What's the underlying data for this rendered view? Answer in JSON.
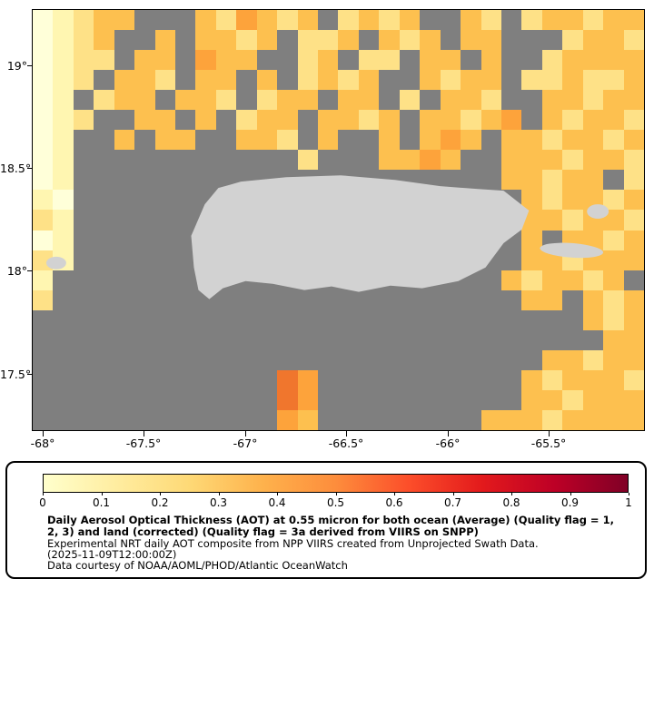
{
  "map": {
    "y_ticks": [
      "19°",
      "18.5°",
      "18°",
      "17.5°"
    ],
    "x_ticks": [
      "-68°",
      "-67.5°",
      "-67°",
      "-66.5°",
      "-66°",
      "-65.5°"
    ],
    "no_data_color": "#7f7f7f",
    "land_color": "#d2d2d2",
    "grid": {
      "cols": 30,
      "rows": 21,
      "palette": {
        ".": "#7f7f7f",
        "a": "#ffffd9",
        "b": "#fff6b1",
        "c": "#fee187",
        "d": "#fdc04f",
        "e": "#fda33b",
        "f": "#f0762d"
      },
      "rows_data": [
        "abcdd...dcedcd.cdcd..dc.cddcdd",
        "abcd..d.ddcd.ccd.dcd.dd...cddc",
        "abcc.dd.edd..cd.cc.dd.d..cdddd",
        "abc.ddc.dd.d.cdcd..dcdd.ccdccd",
        "ab.cdd.ddc.cdd.dd.c.ddc..ddcdd",
        "abc..dd.d.cdd.ddcd.ddcde.dcddc",
        "ab..d.dd..ddc.d..d.ded.ddcddcd",
        "ab...........c...dded..dddcddc",
        "ab.....................ddcdd.c",
        "ba......................dcddcd",
        "cb......................ddcddc",
        "ab......................d.ddcd",
        "cb......................ddcddd",
        "b......................dcddcd.",
        "c.......................dd.dcd",
        "...........................dcd",
        "............................dd",
        ".........................ddcdd",
        "............fe..........dcdddc",
        "............fe..........ddcddd",
        "............ed........dddcdddd"
      ]
    }
  },
  "legend": {
    "colorbar_stops": [
      "#ffffcc",
      "#ffeda0",
      "#fed976",
      "#feb24c",
      "#fd8d3c",
      "#fc4e2a",
      "#e31a1c",
      "#bd0026",
      "#800026"
    ],
    "colorbar_ticks": [
      "0",
      "0.1",
      "0.2",
      "0.3",
      "0.4",
      "0.5",
      "0.6",
      "0.7",
      "0.8",
      "0.9",
      "1"
    ],
    "title_line1": "Daily Aerosol Optical Thickness (AOT) at 0.55 micron for both ocean (Average) (Quality flag = 1,",
    "title_line2": "2, 3) and land (corrected) (Quality flag = 3a derived from VIIRS on SNPP)",
    "subtitle": "Experimental NRT daily AOT composite from NPP VIIRS created from Unprojected Swath Data.",
    "timestamp": "(2025-11-09T12:00:00Z)",
    "credit": "Data courtesy of NOAA/AOML/PHOD/Atlantic OceanWatch"
  }
}
